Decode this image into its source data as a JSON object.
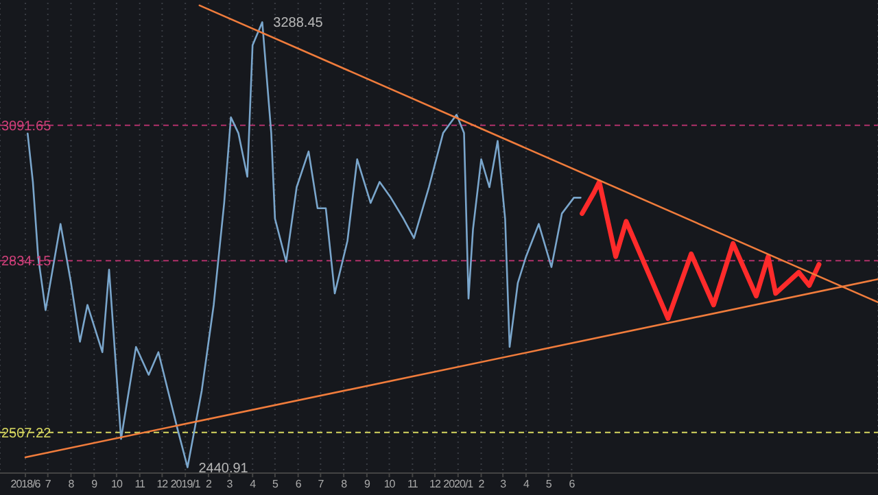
{
  "chart_data": {
    "type": "line",
    "xlim": [
      "2018-04-28",
      "2021-07-16"
    ],
    "ylim": [
      2430,
      3325
    ],
    "tick_labels": "x",
    "grid": "x",
    "marker": "none",
    "line_style": "solid",
    "xticks": [
      {
        "value": "2018-06-01",
        "label": "2018/6"
      },
      {
        "value": "2018-07-01",
        "label": "7"
      },
      {
        "value": "2018-08-01",
        "label": "8"
      },
      {
        "value": "2018-09-01",
        "label": "9"
      },
      {
        "value": "2018-10-01",
        "label": "10"
      },
      {
        "value": "2018-11-01",
        "label": "11"
      },
      {
        "value": "2018-12-01",
        "label": "12"
      },
      {
        "value": "2019-01-01",
        "label": "2019/1"
      },
      {
        "value": "2019-02-01",
        "label": "2"
      },
      {
        "value": "2019-03-01",
        "label": "3"
      },
      {
        "value": "2019-04-01",
        "label": "4"
      },
      {
        "value": "2019-05-01",
        "label": "5"
      },
      {
        "value": "2019-06-01",
        "label": "6"
      },
      {
        "value": "2019-07-01",
        "label": "7"
      },
      {
        "value": "2019-08-01",
        "label": "8"
      },
      {
        "value": "2019-09-01",
        "label": "9"
      },
      {
        "value": "2019-10-01",
        "label": "10"
      },
      {
        "value": "2019-11-01",
        "label": "11"
      },
      {
        "value": "2019-12-01",
        "label": "12"
      },
      {
        "value": "2020-01-01",
        "label": "2020/1"
      },
      {
        "value": "2020-02-01",
        "label": "2"
      },
      {
        "value": "2020-03-01",
        "label": "3"
      },
      {
        "value": "2020-04-01",
        "label": "4"
      },
      {
        "value": "2020-05-01",
        "label": "5"
      },
      {
        "value": "2020-06-01",
        "label": "6"
      }
    ],
    "series": [
      {
        "type": "line",
        "color": "#7aa6cc",
        "x": [
          "2018-06-04",
          "2018-06-11",
          "2018-06-18",
          "2018-06-28",
          "2018-07-18",
          "2018-08-01",
          "2018-08-13",
          "2018-08-23",
          "2018-09-12",
          "2018-09-21",
          "2018-10-07",
          "2018-10-27",
          "2018-11-13",
          "2018-11-26",
          "2018-12-21",
          "2019-01-04",
          "2019-01-23",
          "2019-02-08",
          "2019-02-22",
          "2019-03-03",
          "2019-03-13",
          "2019-03-25",
          "2019-04-01",
          "2019-04-14",
          "2019-04-26",
          "2019-05-01",
          "2019-05-16",
          "2019-05-30",
          "2019-06-15",
          "2019-06-27",
          "2019-07-08",
          "2019-07-20",
          "2019-08-06",
          "2019-08-19",
          "2019-09-06",
          "2019-09-18",
          "2019-10-03",
          "2019-10-20",
          "2019-11-03",
          "2019-11-23",
          "2019-12-12",
          "2019-12-30",
          "2020-01-09",
          "2020-01-15",
          "2020-01-21",
          "2020-02-01",
          "2020-02-12",
          "2020-02-23",
          "2020-03-04",
          "2020-03-10",
          "2020-03-21",
          "2020-04-01",
          "2020-04-18",
          "2020-05-05",
          "2020-05-19",
          "2020-06-04",
          "2020-06-13"
        ],
        "values": [
          3076,
          2984,
          2842,
          2740,
          2904,
          2792,
          2680,
          2750,
          2660,
          2817,
          2495,
          2670,
          2617,
          2660,
          2517,
          2441,
          2587,
          2750,
          2944,
          3107,
          3077,
          2994,
          3244,
          3288,
          3077,
          2914,
          2832,
          2974,
          3042,
          2934,
          2934,
          2772,
          2872,
          3027,
          2944,
          2984,
          2954,
          2914,
          2877,
          2974,
          3077,
          3112,
          3077,
          2762,
          2894,
          3027,
          2974,
          3062,
          2914,
          2670,
          2792,
          2842,
          2904,
          2822,
          2924,
          2954,
          2954
        ]
      },
      {
        "type": "line",
        "color": "#ff2b2b",
        "x": [
          "2020-06-15",
          "2020-07-01",
          "2020-07-08",
          "2020-07-30",
          "2020-08-13",
          "2020-10-08",
          "2020-11-08",
          "2020-12-08",
          "2021-01-03",
          "2021-02-03",
          "2021-02-19",
          "2021-03-01",
          "2021-04-01",
          "2021-04-15",
          "2021-04-28"
        ],
        "values": [
          2924,
          2964,
          2984,
          2842,
          2909,
          2724,
          2847,
          2750,
          2867,
          2767,
          2842,
          2772,
          2812,
          2787,
          2827
        ]
      },
      {
        "type": "line",
        "color": "#f07c3c",
        "x": [
          "2019-01-20",
          "2021-07-16"
        ],
        "values": [
          3320,
          2755
        ]
      },
      {
        "type": "line",
        "color": "#f07c3c",
        "x": [
          "2018-06-01",
          "2021-07-16"
        ],
        "values": [
          2460,
          2799
        ]
      }
    ],
    "ref_lines": [
      {
        "axis": "y",
        "value": 3091.65,
        "label": "3091.65",
        "color": "#b0306a",
        "line_style": "dashed"
      },
      {
        "axis": "y",
        "value": 2834.15,
        "label": "2834.15",
        "color": "#b0306a",
        "line_style": "dashed"
      },
      {
        "axis": "y",
        "value": 2507.22,
        "label": "2507.22",
        "color": "#d8d860",
        "line_style": "dashed"
      }
    ],
    "annotations": [
      {
        "text": "3288.45",
        "x": "2019-04-14",
        "y": 3288.45
      },
      {
        "text": "2440.91",
        "x": "2019-01-04",
        "y": 2440.91
      }
    ]
  }
}
